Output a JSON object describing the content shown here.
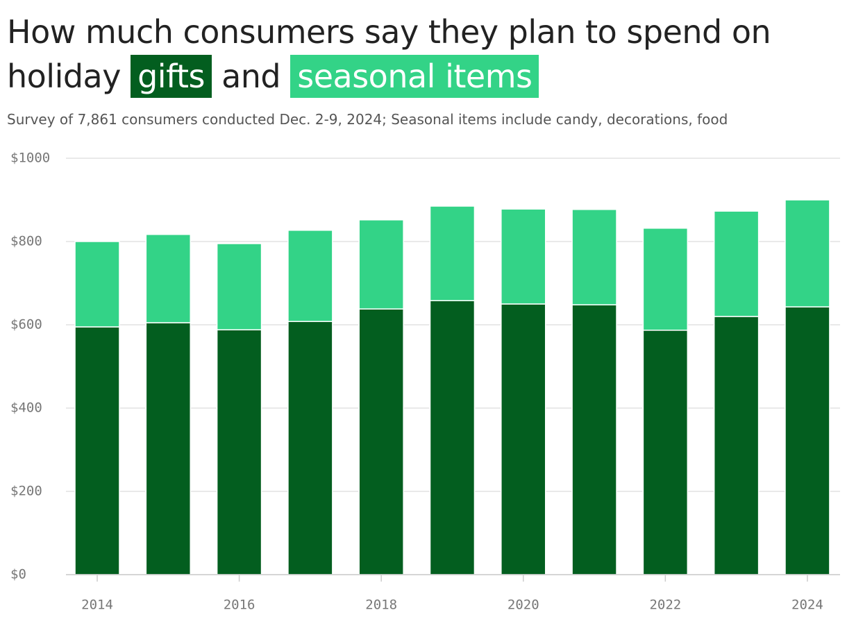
{
  "chart_data": {
    "type": "stacked_bar",
    "title": [
      "How much consumers say they plan to spend on holiday",
      "and"
    ],
    "subtitle": "Survey of 7,861 consumers conducted Dec. 2-9, 2024; Seasonal items include candy, decorations, food",
    "x": [
      2014,
      2015,
      2016,
      2017,
      2018,
      2019,
      2020,
      2021,
      2022,
      2023,
      2024
    ],
    "series": [
      {
        "name": "gifts",
        "color": "#035e1f",
        "values": [
          595,
          605,
          588,
          608,
          638,
          658,
          650,
          648,
          587,
          620,
          643
        ]
      },
      {
        "name": "seasonal items",
        "color": "#33d387",
        "values": [
          205,
          212,
          207,
          219,
          214,
          227,
          228,
          229,
          245,
          253,
          257
        ]
      }
    ],
    "xlim": [
      2013.56,
      2024.46
    ],
    "xticks": [
      2014,
      2016,
      2018,
      2020,
      2022,
      2024
    ],
    "ylim": [
      0,
      1000
    ],
    "yticks": [
      {
        "value": 0,
        "label": "$0"
      },
      {
        "value": 200,
        "label": "$200"
      },
      {
        "value": 400,
        "label": "$400"
      },
      {
        "value": 600,
        "label": "$600"
      },
      {
        "value": 800,
        "label": "$800"
      },
      {
        "value": 1000,
        "label": "$1000"
      }
    ],
    "grid": true
  }
}
